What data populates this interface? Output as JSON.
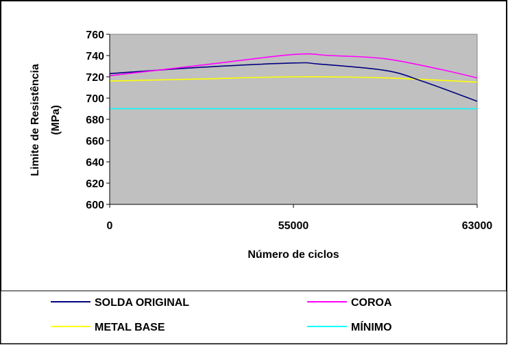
{
  "chart_data": {
    "type": "line",
    "xlabel": "Número de ciclos",
    "ylabel_lines": [
      "Limite de Resistência",
      "(MPa)"
    ],
    "ylim": [
      600,
      760
    ],
    "yticks": [
      600,
      620,
      640,
      660,
      680,
      700,
      720,
      740,
      760
    ],
    "categories": [
      "0",
      "55000",
      "63000"
    ],
    "grid": false,
    "plot_background": "#c0c0c0",
    "legend_position": "bottom",
    "series": [
      {
        "name": "SOLDA ORIGINAL",
        "color": "#000080",
        "values": [
          723,
          733,
          697
        ],
        "curve": [
          [
            0,
            723
          ],
          [
            0.25,
            729
          ],
          [
            0.5,
            733
          ],
          [
            0.57,
            732
          ],
          [
            0.75,
            726
          ],
          [
            0.85,
            716
          ],
          [
            1,
            697
          ]
        ]
      },
      {
        "name": "COROA",
        "color": "#ff00ff",
        "values": [
          721,
          741,
          719
        ],
        "curve": [
          [
            0,
            721
          ],
          [
            0.25,
            731
          ],
          [
            0.5,
            741
          ],
          [
            0.6,
            740
          ],
          [
            0.75,
            737
          ],
          [
            0.9,
            727
          ],
          [
            1,
            719
          ]
        ]
      },
      {
        "name": "METAL BASE",
        "color": "#ffff00",
        "values": [
          716,
          720,
          715
        ],
        "curve": [
          [
            0,
            716
          ],
          [
            0.25,
            718
          ],
          [
            0.5,
            720
          ],
          [
            0.75,
            719
          ],
          [
            1,
            715
          ]
        ]
      },
      {
        "name": "MÍNIMO",
        "color": "#00ffff",
        "values": [
          690,
          690,
          690
        ],
        "curve": [
          [
            0,
            690
          ],
          [
            1,
            690
          ]
        ]
      }
    ]
  }
}
